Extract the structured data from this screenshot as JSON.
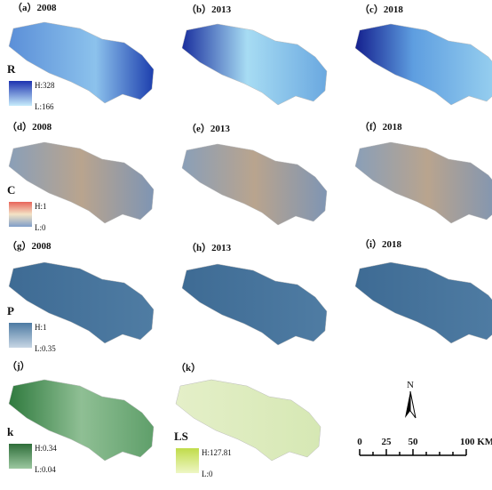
{
  "panels": [
    {
      "label": "（a）2008"
    },
    {
      "label": "（b）2013"
    },
    {
      "label": "（c）2018"
    },
    {
      "label": "（d）2008"
    },
    {
      "label": "（e）2013"
    },
    {
      "label": "（f）2018"
    },
    {
      "label": "（g）2008"
    },
    {
      "label": "（h）2013"
    },
    {
      "label": "（i）2018"
    },
    {
      "label": "（j）"
    },
    {
      "label": "（k）"
    }
  ],
  "legends": [
    {
      "title": "R",
      "high": "H:328",
      "low": "L:166"
    },
    {
      "title": "C",
      "high": "H:1",
      "low": "L:0"
    },
    {
      "title": "P",
      "high": "H:1",
      "low": "L:0.35"
    },
    {
      "title": "k",
      "high": "H:0.34",
      "low": "L:0.04"
    },
    {
      "title": "LS",
      "high": "H:127.81",
      "low": "L:0"
    }
  ],
  "north": "N",
  "scale_bar": [
    "0",
    "25",
    "50",
    "100 KM"
  ]
}
